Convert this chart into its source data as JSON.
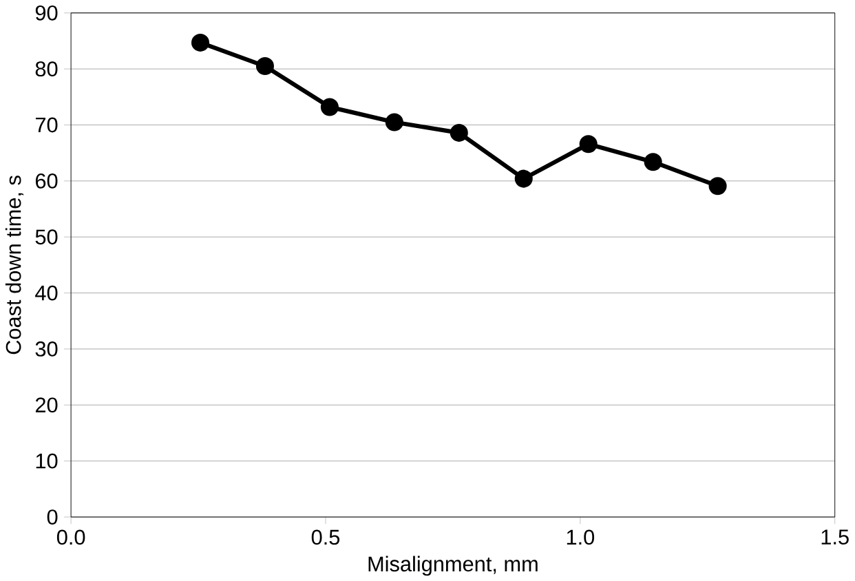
{
  "chart_data": {
    "type": "line",
    "xlabel": "Misalignment, mm",
    "ylabel": "Coast down time, s",
    "x": [
      0.254,
      0.381,
      0.508,
      0.635,
      0.762,
      0.889,
      1.016,
      1.143,
      1.27
    ],
    "series": [
      {
        "color": "#000000",
        "values": [
          84.7,
          80.5,
          73.2,
          70.5,
          68.6,
          60.4,
          66.6,
          63.4,
          59.1
        ]
      }
    ],
    "xlim": [
      0,
      1.5
    ],
    "ylim": [
      0,
      90
    ],
    "xticks": [
      {
        "value": 0,
        "label": "0.0"
      },
      {
        "value": 0.5,
        "label": "0.5"
      },
      {
        "value": 1,
        "label": "1.0"
      },
      {
        "value": 1.5,
        "label": "1.5"
      }
    ],
    "yticks": [
      0,
      10,
      20,
      30,
      40,
      50,
      60,
      70,
      80,
      90
    ],
    "grid": "y",
    "marker": "circle",
    "line_style": "solid"
  }
}
